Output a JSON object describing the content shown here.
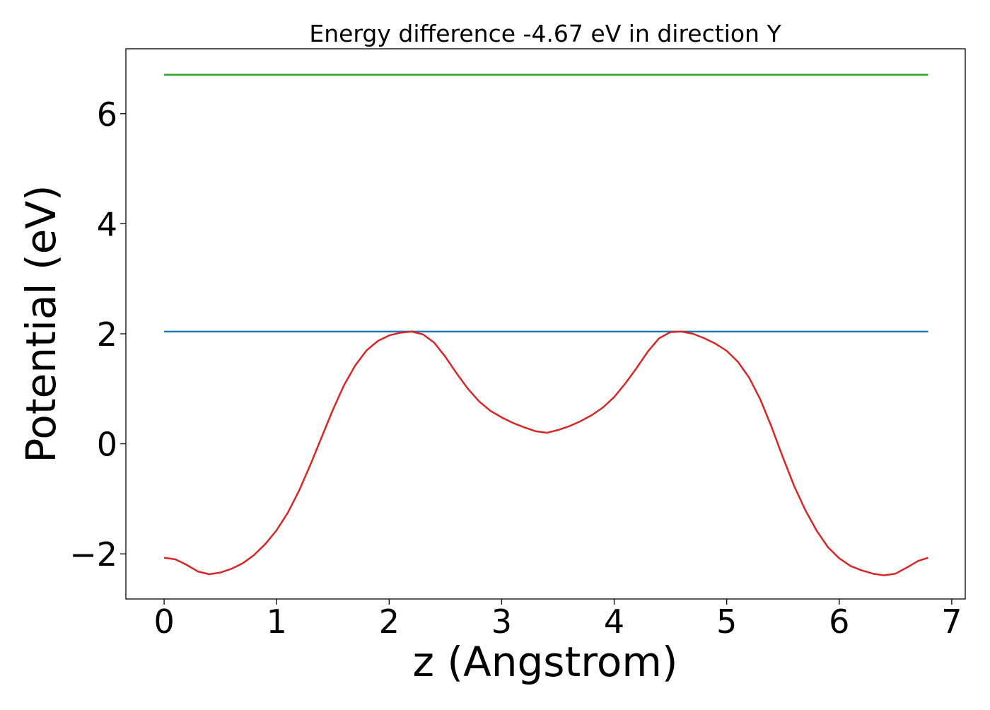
{
  "chart_data": {
    "type": "line",
    "title": "Energy difference -4.67 eV in direction Y",
    "xlabel": "z (Angstrom)",
    "ylabel": "Potential (eV)",
    "xlim": [
      -0.34,
      7.12
    ],
    "ylim": [
      -2.82,
      7.18
    ],
    "grid": false,
    "xticks": [
      0,
      1,
      2,
      3,
      4,
      5,
      6,
      7
    ],
    "xtick_labels": [
      "0",
      "1",
      "2",
      "3",
      "4",
      "5",
      "6",
      "7"
    ],
    "yticks": [
      -2,
      0,
      2,
      4,
      6
    ],
    "ytick_labels": [
      "−2",
      "0",
      "2",
      "4",
      "6"
    ],
    "series": [
      {
        "color": "#2ca02c",
        "x": [
          0,
          6.79
        ],
        "y": [
          6.71,
          6.71
        ]
      },
      {
        "color": "#1f77b4",
        "x": [
          0,
          6.79
        ],
        "y": [
          2.04,
          2.04
        ]
      },
      {
        "color": "#d62728",
        "x": [
          0,
          0.1,
          0.2,
          0.3,
          0.4,
          0.5,
          0.6,
          0.7,
          0.8,
          0.9,
          1.0,
          1.1,
          1.2,
          1.3,
          1.4,
          1.5,
          1.6,
          1.7,
          1.8,
          1.9,
          2.0,
          2.1,
          2.2,
          2.3,
          2.4,
          2.5,
          2.6,
          2.7,
          2.8,
          2.9,
          3.0,
          3.1,
          3.2,
          3.3,
          3.4,
          3.5,
          3.6,
          3.7,
          3.8,
          3.9,
          4.0,
          4.1,
          4.2,
          4.3,
          4.4,
          4.5,
          4.6,
          4.7,
          4.8,
          4.9,
          5.0,
          5.1,
          5.2,
          5.3,
          5.4,
          5.5,
          5.6,
          5.7,
          5.8,
          5.9,
          6.0,
          6.1,
          6.2,
          6.3,
          6.4,
          6.5,
          6.6,
          6.7,
          6.79
        ],
        "y": [
          -2.07,
          -2.1,
          -2.2,
          -2.32,
          -2.37,
          -2.34,
          -2.27,
          -2.17,
          -2.02,
          -1.82,
          -1.57,
          -1.25,
          -0.85,
          -0.38,
          0.12,
          0.62,
          1.07,
          1.43,
          1.7,
          1.87,
          1.97,
          2.02,
          2.04,
          1.99,
          1.84,
          1.58,
          1.28,
          1.0,
          0.77,
          0.6,
          0.48,
          0.38,
          0.3,
          0.23,
          0.2,
          0.25,
          0.32,
          0.41,
          0.52,
          0.66,
          0.85,
          1.1,
          1.38,
          1.68,
          1.92,
          2.03,
          2.04,
          2.0,
          1.92,
          1.82,
          1.69,
          1.49,
          1.2,
          0.8,
          0.3,
          -0.25,
          -0.77,
          -1.21,
          -1.58,
          -1.88,
          -2.08,
          -2.22,
          -2.3,
          -2.36,
          -2.39,
          -2.36,
          -2.25,
          -2.13,
          -2.07
        ]
      }
    ]
  }
}
